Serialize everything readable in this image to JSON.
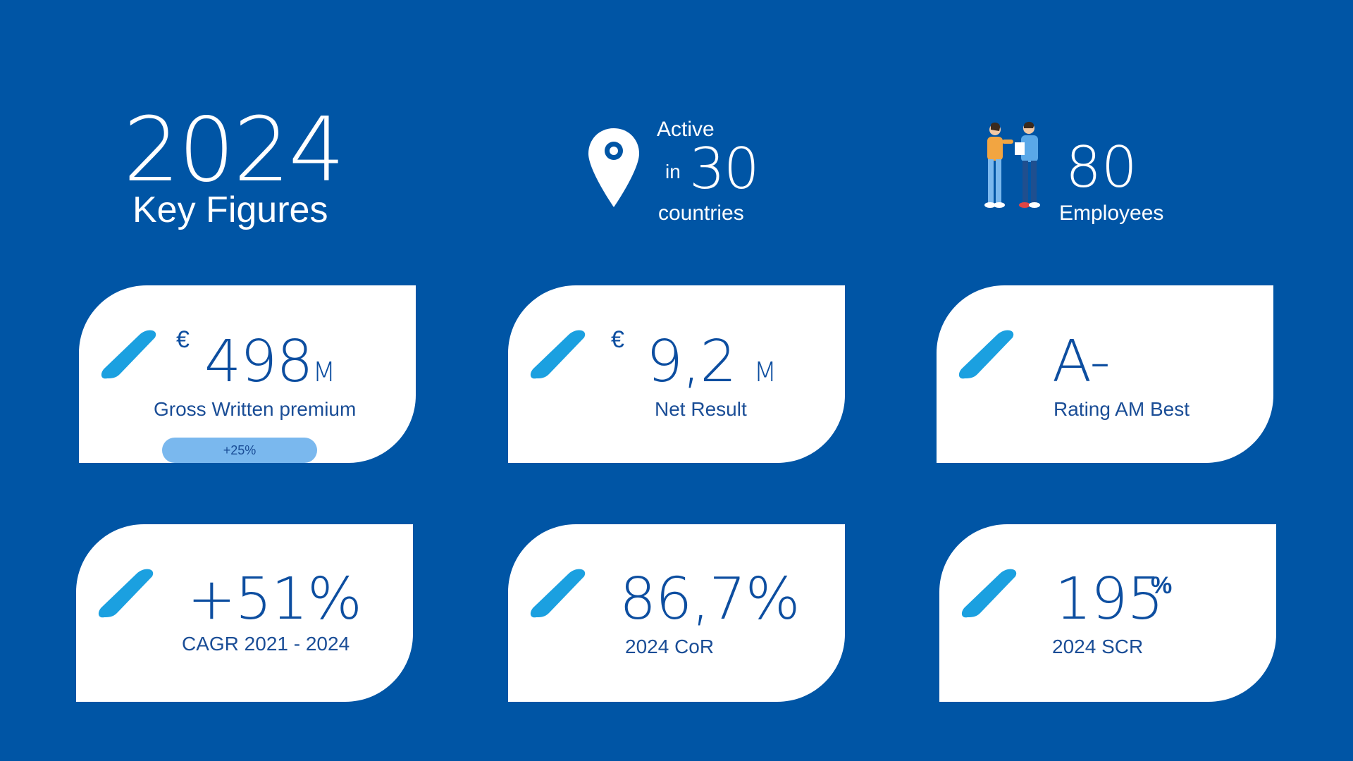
{
  "header": {
    "year": "2024",
    "subtitle": "Key Figures",
    "presence": {
      "label_top": "Active",
      "label_in": "in",
      "value": "30",
      "label_bottom": "countries"
    },
    "staff": {
      "value": "80",
      "label": "Employees"
    }
  },
  "icons": [
    "location-pin-icon",
    "people-icon",
    "slash-accent-icon"
  ],
  "colors": {
    "background": "#0055a5",
    "card": "#ffffff",
    "accent": "#1ba0e0",
    "text": "#0d4ea0",
    "badge": "#7ab8ee"
  },
  "cards": [
    {
      "currency": "€",
      "value": "498",
      "unit": "M",
      "caption": "Gross Written premium",
      "badge": "+25%"
    },
    {
      "currency": "€",
      "value": "9,2",
      "unit": "M",
      "caption": "Net Result"
    },
    {
      "value": "A-",
      "caption": "Rating AM Best"
    },
    {
      "value": "+51%",
      "caption": "CAGR 2021 - 2024"
    },
    {
      "value": "86,7%",
      "caption": "2024 CoR"
    },
    {
      "value": "195",
      "unit": "%",
      "caption": "2024 SCR"
    }
  ]
}
